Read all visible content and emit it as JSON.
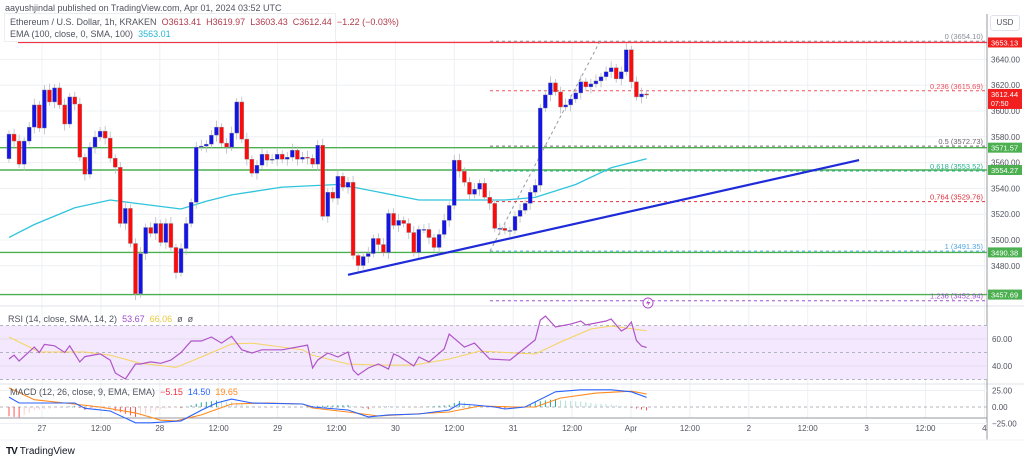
{
  "header": {
    "published": "aayushjindal published on TradingView.com, Apr 01, 2024 03:52 UTC",
    "symbol": "Ethereum / U.S. Dollar, 1h, KRAKEN",
    "open": "O3613.41",
    "high": "H3619.97",
    "low": "L3603.43",
    "close": "C3612.44",
    "change": "−1.22 (−0.03%)",
    "ema_label": "EMA (100, close, 0, SMA, 100)",
    "ema_value": "3563.01"
  },
  "rsi_legend": {
    "label": "RSI (14, close, SMA, 14, 2)",
    "value": "53.67",
    "sma": "66.06",
    "extra1": "ø",
    "extra2": "ø"
  },
  "macd_legend": {
    "label": "MACD (12, 26, close, 9, EMA, EMA)",
    "hist": "−5.15",
    "macd": "14.50",
    "signal": "19.65"
  },
  "currency_button": "USD",
  "footer_logo": {
    "mark": "TV",
    "text": "TradingView"
  },
  "colors": {
    "up": "#1414e6",
    "down": "#ff0a0a",
    "ema": "#2ec4dc",
    "trendline": "#1f2bd8",
    "support": "#4caf50",
    "resistance": "#f23645",
    "rsi": "#b054c8",
    "rsi_sma": "#f5d45e",
    "macd": "#2962ff",
    "signal": "#ff8a1e"
  },
  "chart_data": {
    "type": "candlestick",
    "first_open": 3563,
    "close": [
      3582.1,
      3576.7,
      3558.8,
      3576.7,
      3587.5,
      3604.7,
      3586.8,
      3616.3,
      3607.0,
      3617.9,
      3604.7,
      3589.9,
      3610.9,
      3605.4,
      3564.2,
      3551.0,
      3572.0,
      3579.8,
      3584.4,
      3579.0,
      3563.4,
      3556.4,
      3512.8,
      3524.5,
      3497.3,
      3458.4,
      3489.5,
      3509.7,
      3505.1,
      3512.8,
      3498.1,
      3512.8,
      3494.2,
      3474.7,
      3493.4,
      3512.8,
      3529.2,
      3572.0,
      3572.8,
      3574.3,
      3581.3,
      3587.5,
      3575.1,
      3572.0,
      3582.9,
      3607.0,
      3578.2,
      3562.6,
      3551.8,
      3558.0,
      3566.5,
      3561.9,
      3562.6,
      3566.5,
      3562.6,
      3564.2,
      3569.6,
      3562.6,
      3564.2,
      3563.4,
      3558.8,
      3573.5,
      3518.3,
      3537.0,
      3532.3,
      3549.4,
      3540.9,
      3544.7,
      3488.0,
      3480.2,
      3487.2,
      3489.5,
      3501.2,
      3496.5,
      3490.3,
      3520.6,
      3511.3,
      3515.2,
      3512.8,
      3505.8,
      3490.3,
      3508.2,
      3508.2,
      3501.9,
      3494.2,
      3504.3,
      3515.2,
      3526.8,
      3561.9,
      3553.3,
      3544.7,
      3535.4,
      3539.3,
      3544.0,
      3533.1,
      3528.4,
      3509.0,
      3509.0,
      3507.4,
      3507.4,
      3518.3,
      3523.0,
      3528.4,
      3537.0,
      3542.4,
      3602.3,
      3612.5,
      3621.8,
      3614.8,
      3603.1,
      3604.7,
      3609.3,
      3614.0,
      3622.6,
      3618.7,
      3621.0,
      3623.3,
      3626.5,
      3630.4,
      3633.5,
      3624.9,
      3630.4,
      3647.5,
      3622.6,
      3610.9,
      3613.2,
      3612.4
    ],
    "ema100": [
      [
        0,
        3502
      ],
      [
        5,
        3512
      ],
      [
        13,
        3525
      ],
      [
        20,
        3531
      ],
      [
        24,
        3529
      ],
      [
        34,
        3524
      ],
      [
        39,
        3530
      ],
      [
        44,
        3535
      ],
      [
        54,
        3541
      ],
      [
        65,
        3543
      ],
      [
        68,
        3541
      ],
      [
        81,
        3531
      ],
      [
        87,
        3531
      ],
      [
        98,
        3531
      ],
      [
        104,
        3533
      ],
      [
        112,
        3543
      ],
      [
        119,
        3556
      ],
      [
        126,
        3563.01
      ]
    ],
    "trendline": [
      [
        67,
        3473
      ],
      [
        168,
        3562
      ]
    ],
    "support_resistance": [
      {
        "price": 3653.13,
        "label": "3653.13",
        "kind": "resistance"
      },
      {
        "price": 3571.57,
        "label": "3571.57",
        "kind": "support"
      },
      {
        "price": 3554.27,
        "label": "3554.27",
        "kind": "support"
      },
      {
        "price": 3490.38,
        "label": "3490.38",
        "kind": "support"
      },
      {
        "price": 3457.69,
        "label": "3457.69",
        "kind": "support"
      }
    ],
    "fib_levels": [
      {
        "level": "0",
        "price": 3654.1,
        "label": "0 (3654.10)",
        "color": "#8a8d96"
      },
      {
        "level": "0.236",
        "price": 3615.69,
        "label": "0.236 (3615.69)",
        "color": "#f0505c"
      },
      {
        "level": "0.5",
        "price": 3572.73,
        "label": "0.5 (3572.73)",
        "color": "#6e6270"
      },
      {
        "level": "0.618",
        "price": 3553.52,
        "label": "0.618 (3553.52)",
        "color": "#26b28f"
      },
      {
        "level": "0.764",
        "price": 3529.76,
        "label": "0.764 (3529.76)",
        "color": "#e0303c"
      },
      {
        "level": "1",
        "price": 3491.35,
        "label": "1 (3491.35)",
        "color": "#4fa8e0"
      },
      {
        "level": "1.236",
        "price": 3452.94,
        "label": "1.236 (3452.94)",
        "color": "#a050d0"
      }
    ],
    "last_price": {
      "label": "3612.44",
      "countdown": "07:50",
      "price": 3612.44
    },
    "price_ticks": [
      "3640.00",
      "3620.00",
      "3600.00",
      "3580.00",
      "3560.00",
      "3540.00",
      "3520.00",
      "3500.00",
      "3480.00"
    ],
    "price_tick_values": [
      3640,
      3620,
      3600,
      3580,
      3560,
      3540,
      3520,
      3500,
      3480
    ],
    "time_ticks": [
      "27",
      "12:00",
      "28",
      "12:00",
      "29",
      "12:00",
      "30",
      "12:00",
      "31",
      "12:00",
      "Apr",
      "12:00",
      "2",
      "12:00",
      "3",
      "12:00",
      "4"
    ],
    "rsi": {
      "range": [
        0,
        100
      ],
      "band": [
        30,
        70
      ],
      "ticks": [
        "60.00",
        "40.00"
      ],
      "tick_values": [
        60,
        40
      ],
      "values": [
        [
          0,
          45.2
        ],
        [
          1,
          48
        ],
        [
          2,
          43.7
        ],
        [
          5,
          54
        ],
        [
          6,
          50
        ],
        [
          7,
          56
        ],
        [
          9,
          55
        ],
        [
          11,
          50
        ],
        [
          12,
          55
        ],
        [
          14,
          43
        ],
        [
          15,
          47
        ],
        [
          18,
          49
        ],
        [
          20,
          44.4
        ],
        [
          21,
          34.8
        ],
        [
          23,
          30.4
        ],
        [
          25,
          41.5
        ],
        [
          26,
          41.5
        ],
        [
          28,
          43
        ],
        [
          30,
          42
        ],
        [
          32,
          44.4
        ],
        [
          34,
          50
        ],
        [
          36,
          58.5
        ],
        [
          38,
          58.5
        ],
        [
          40,
          61.5
        ],
        [
          42,
          57
        ],
        [
          44,
          62
        ],
        [
          46,
          52
        ],
        [
          48,
          49.6
        ],
        [
          50,
          52
        ],
        [
          52,
          52
        ],
        [
          54,
          52
        ],
        [
          59,
          55.5
        ],
        [
          60,
          38.5
        ],
        [
          61,
          44.4
        ],
        [
          63,
          49.6
        ],
        [
          65,
          46.7
        ],
        [
          67,
          50.4
        ],
        [
          68,
          37
        ],
        [
          69,
          33.3
        ],
        [
          71,
          38.5
        ],
        [
          73,
          41.5
        ],
        [
          75,
          37.8
        ],
        [
          76,
          49
        ],
        [
          77,
          47.4
        ],
        [
          80,
          40
        ],
        [
          81,
          46.7
        ],
        [
          83,
          43
        ],
        [
          86,
          52.6
        ],
        [
          87,
          63.7
        ],
        [
          90,
          54
        ],
        [
          92,
          57
        ],
        [
          95,
          45.2
        ],
        [
          99,
          44.4
        ],
        [
          101,
          50.4
        ],
        [
          104,
          59.3
        ],
        [
          105,
          74
        ],
        [
          106,
          77
        ],
        [
          108,
          68.9
        ],
        [
          111,
          71
        ],
        [
          113,
          73.3
        ],
        [
          114,
          70.4
        ],
        [
          118,
          73.3
        ],
        [
          119,
          74.8
        ],
        [
          121,
          65.9
        ],
        [
          122,
          68
        ],
        [
          123,
          72.6
        ],
        [
          124,
          59
        ],
        [
          125,
          54.8
        ],
        [
          126,
          53.67
        ]
      ],
      "sma": [
        [
          0,
          61.5
        ],
        [
          6,
          50.4
        ],
        [
          15,
          50.4
        ],
        [
          20,
          48
        ],
        [
          26,
          42
        ],
        [
          33,
          39
        ],
        [
          38,
          46.7
        ],
        [
          44,
          56.3
        ],
        [
          48,
          57
        ],
        [
          58,
          52
        ],
        [
          60,
          48
        ],
        [
          67,
          41.5
        ],
        [
          73,
          40.7
        ],
        [
          80,
          40.7
        ],
        [
          87,
          45.2
        ],
        [
          93,
          51
        ],
        [
          100,
          49.6
        ],
        [
          104,
          48.9
        ],
        [
          109,
          57.8
        ],
        [
          115,
          67.4
        ],
        [
          119,
          69.6
        ],
        [
          126,
          66.06
        ]
      ]
    },
    "macd": {
      "ticks": [
        "25.00",
        "0.00",
        "−25.00"
      ],
      "tick_values": [
        25,
        0,
        -25
      ],
      "macd": [
        [
          0,
          15
        ],
        [
          2,
          6
        ],
        [
          8,
          6
        ],
        [
          13,
          6
        ],
        [
          15,
          -2
        ],
        [
          20,
          -6
        ],
        [
          25,
          -24
        ],
        [
          28,
          -24
        ],
        [
          34,
          -21
        ],
        [
          38,
          -5
        ],
        [
          41,
          6
        ],
        [
          44,
          12
        ],
        [
          48,
          6
        ],
        [
          58,
          4.5
        ],
        [
          60,
          0
        ],
        [
          67,
          -4.5
        ],
        [
          71,
          -15
        ],
        [
          75,
          -12
        ],
        [
          81,
          -10.6
        ],
        [
          87,
          -4.5
        ],
        [
          89,
          4.5
        ],
        [
          92,
          3
        ],
        [
          96,
          0
        ],
        [
          98,
          -3
        ],
        [
          102,
          0
        ],
        [
          108,
          23
        ],
        [
          113,
          26
        ],
        [
          119,
          26
        ],
        [
          123,
          23
        ],
        [
          126,
          14.5
        ]
      ],
      "signal": [
        [
          0,
          29
        ],
        [
          5,
          11
        ],
        [
          11,
          6
        ],
        [
          18,
          0
        ],
        [
          25,
          -9
        ],
        [
          30,
          -20
        ],
        [
          33,
          -21
        ],
        [
          38,
          -12
        ],
        [
          44,
          4.5
        ],
        [
          51,
          6
        ],
        [
          58,
          4.5
        ],
        [
          60,
          -1.5
        ],
        [
          67,
          -7.6
        ],
        [
          73,
          -13.6
        ],
        [
          80,
          -10.6
        ],
        [
          87,
          -7.6
        ],
        [
          93,
          1.5
        ],
        [
          100,
          0
        ],
        [
          104,
          0
        ],
        [
          109,
          13.6
        ],
        [
          116,
          21
        ],
        [
          123,
          24
        ],
        [
          126,
          19.65
        ]
      ]
    }
  }
}
